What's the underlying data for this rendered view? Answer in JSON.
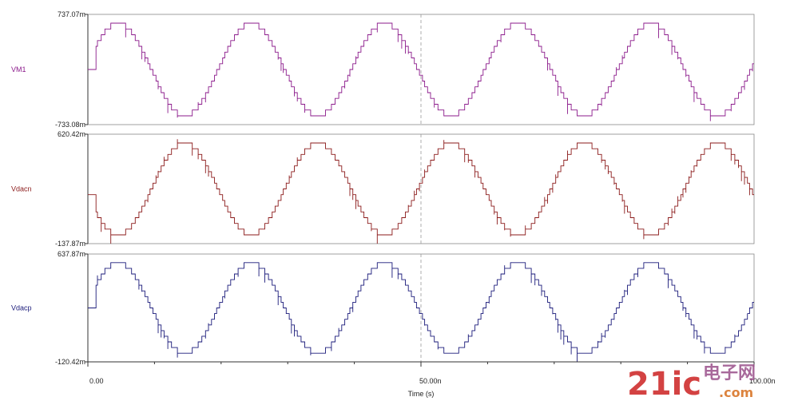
{
  "chart_data": {
    "type": "line",
    "xlabel": "Time (s)",
    "x_ticks": [
      "0.00",
      "50.00n",
      "100.00n"
    ],
    "xlim": [
      0,
      100
    ],
    "cursor_x": 50,
    "grid": false,
    "panels": [
      {
        "name": "VM1",
        "color": "#8b1a8b",
        "ylim": [
          -733.08,
          737.07
        ],
        "y_tick_labels": [
          "737.07m",
          "-733.08m"
        ],
        "phase": "sine"
      },
      {
        "name": "Vdacn",
        "color": "#8b1a1a",
        "ylim": [
          -137.87,
          620.42
        ],
        "y_tick_labels": [
          "620.42m",
          "-137.87m"
        ],
        "phase": "inverted"
      },
      {
        "name": "Vdacp",
        "color": "#1a1a7a",
        "ylim": [
          -120.42,
          637.87
        ],
        "y_tick_labels": [
          "637.87m",
          "-120.42m"
        ],
        "phase": "sine"
      }
    ],
    "signal": {
      "cycles": 5,
      "quantization_steps": 16,
      "glitch_spikes": true
    }
  },
  "watermark": {
    "main": "21ic",
    "chinese": "电子网",
    "domain": ".com"
  },
  "colors": {
    "axis": "#333333",
    "frame": "#888888",
    "cursor": "#999999",
    "watermark_red": "#cc2222",
    "watermark_purple": "#9a4f8a",
    "watermark_orange": "#d9762a"
  }
}
